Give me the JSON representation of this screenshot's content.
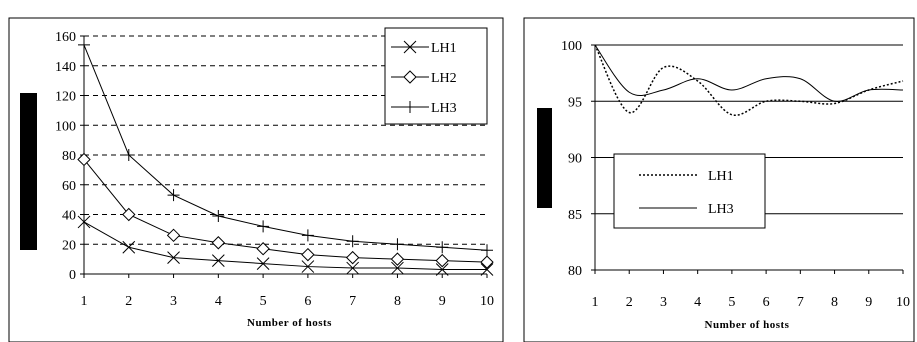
{
  "chart_data": [
    {
      "type": "line",
      "x": [
        1,
        2,
        3,
        4,
        5,
        6,
        7,
        8,
        9,
        10
      ],
      "xlabel": "Number of hosts",
      "ylabel": "",
      "ylim": [
        0,
        160
      ],
      "yticks": [
        0,
        20,
        40,
        60,
        80,
        100,
        120,
        140,
        160
      ],
      "grid": "horizontal dashed",
      "legend_position": "top-right",
      "series": [
        {
          "name": "LH1",
          "marker": "x",
          "values": [
            35,
            18,
            11,
            9,
            7,
            5,
            4,
            4,
            3,
            3
          ]
        },
        {
          "name": "LH2",
          "marker": "diamond",
          "values": [
            77,
            40,
            26,
            21,
            17,
            13,
            11,
            10,
            9,
            8
          ]
        },
        {
          "name": "LH3",
          "marker": "plus",
          "values": [
            154,
            80,
            53,
            39,
            32,
            26,
            22,
            20,
            18,
            16
          ]
        }
      ]
    },
    {
      "type": "line",
      "x": [
        1,
        2,
        3,
        4,
        5,
        6,
        7,
        8,
        9,
        10
      ],
      "xlabel": "Number of hosts",
      "ylabel": "",
      "ylim": [
        80,
        100
      ],
      "yticks": [
        80,
        85,
        90,
        95,
        100
      ],
      "grid": "horizontal solid",
      "legend_position": "center-left",
      "series": [
        {
          "name": "LH1",
          "style": "dotted",
          "values": [
            100,
            94,
            98,
            96.8,
            93.8,
            95,
            95,
            94.8,
            96,
            96.8
          ]
        },
        {
          "name": "LH3",
          "style": "solid",
          "values": [
            100,
            95.8,
            96,
            97,
            96,
            97,
            97,
            95,
            96,
            96
          ]
        }
      ]
    }
  ]
}
